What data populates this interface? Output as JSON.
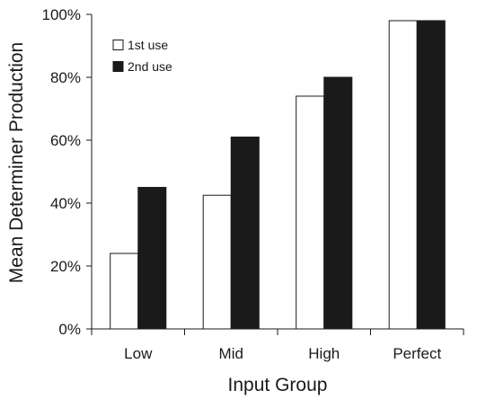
{
  "chart_data": {
    "type": "bar",
    "categories": [
      "Low",
      "Mid",
      "High",
      "Perfect"
    ],
    "series": [
      {
        "name": "1st use",
        "values": [
          24,
          42.5,
          74,
          98
        ],
        "color": "#ffffff"
      },
      {
        "name": "2nd use",
        "values": [
          45,
          61,
          80,
          98
        ],
        "color": "#1a1a1a"
      }
    ],
    "xlabel": "Input Group",
    "ylabel": "Mean Determiner Production",
    "ylim": [
      0,
      100
    ],
    "yticks": [
      0,
      20,
      40,
      60,
      80,
      100
    ],
    "ytick_labels": [
      "0%",
      "20%",
      "40%",
      "60%",
      "80%",
      "100%"
    ],
    "grid": false,
    "legend_position": "top-left"
  }
}
